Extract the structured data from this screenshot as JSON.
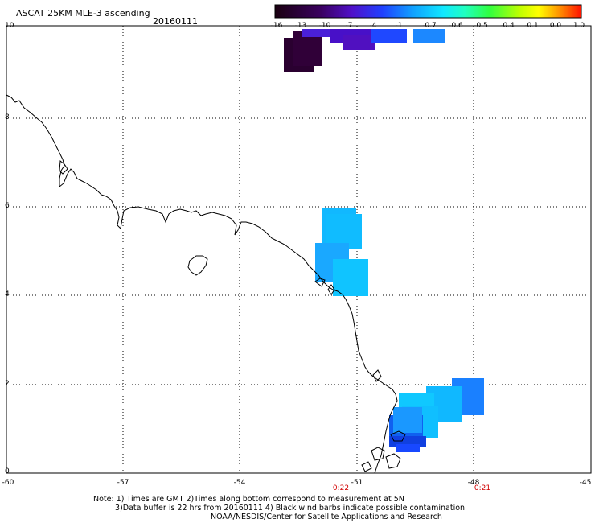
{
  "title": "ASCAT 25KM MLE-3 ascending",
  "date": "20160111",
  "colorbar": {
    "labels": [
      "-16",
      "-13",
      "-10",
      "-7",
      "-4",
      "-1",
      "-0.7",
      "-0.6",
      "-0.5",
      "-0.4",
      "-0.1",
      "0.0",
      "1.0"
    ],
    "colors": [
      "#200018",
      "#3a0058",
      "#5a10c0",
      "#2040ff",
      "#1c8cff",
      "#10c8ff",
      "#20ffd0",
      "#20ff60",
      "#80ff10",
      "#f0f000",
      "#ffb000",
      "#ff5000",
      "#ff1000"
    ]
  },
  "lat_labels": [
    "10",
    "8",
    "6",
    "4",
    "2",
    "0"
  ],
  "lon_labels": [
    "-60",
    "-57",
    "-54",
    "-51",
    "-48",
    "-45"
  ],
  "time_labels": [
    {
      "lon": "-51",
      "text": "0:22"
    },
    {
      "lon": "-48",
      "text": "0:21"
    }
  ],
  "notes": {
    "line1": "Note: 1) Times are GMT 2)Times along bottom correspond to measurement at 5N",
    "line2": "3)Data buffer is 22 hrs from 20160111 4) Black wind barbs indicate possible contamination",
    "line3": "NOAA/NESDIS/Center for Satellite Applications and Research"
  }
}
